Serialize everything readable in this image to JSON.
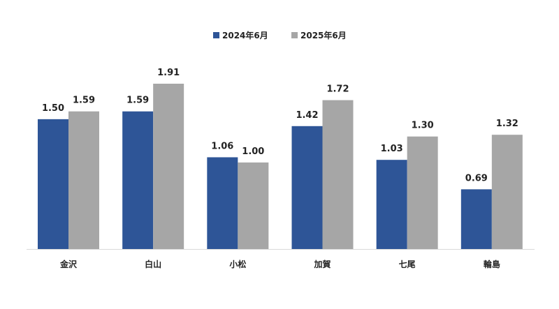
{
  "chart_data": {
    "type": "bar",
    "title": "",
    "xlabel": "",
    "ylabel": "",
    "categories": [
      "金沢",
      "白山",
      "小松",
      "加賀",
      "七尾",
      "輪島"
    ],
    "series": [
      {
        "name": "2024年6月",
        "values": [
          1.5,
          1.59,
          1.06,
          1.42,
          1.03,
          0.69
        ],
        "color": "#2E5597"
      },
      {
        "name": "2025年6月",
        "values": [
          1.59,
          1.91,
          1.0,
          1.72,
          1.3,
          1.32
        ],
        "color": "#A6A6A6"
      }
    ],
    "ylim": [
      0,
      2.0
    ],
    "grid": false,
    "legend_position": "top-center",
    "value_format_decimals": 2
  }
}
